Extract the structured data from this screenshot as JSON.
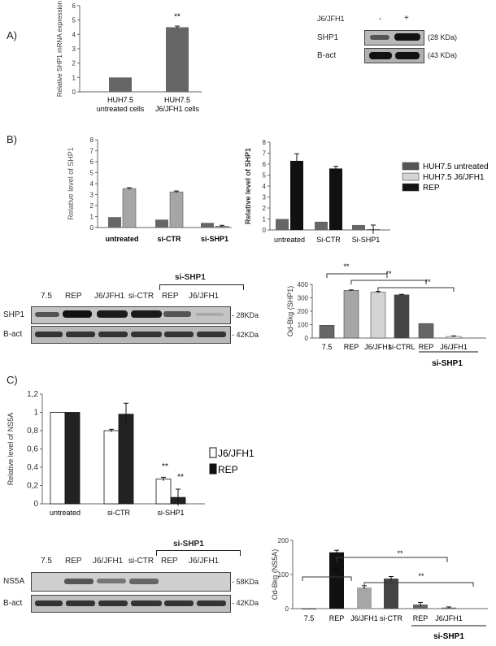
{
  "panel_labels": {
    "a": "A)",
    "b": "B)",
    "c": "C)"
  },
  "colors": {
    "dark_bar": "#666666",
    "black_bar": "#111111",
    "light_bar": "#d4d4d4",
    "mid_bar": "#a6a6a6",
    "white_bar": "#ffffff"
  },
  "chart_data": [
    {
      "type": "bar",
      "panel": "A-chart",
      "categories": [
        "HUH7.5 untreated cells",
        "HUH7.5 J6/JFH1 cells"
      ],
      "values": [
        1.0,
        4.5
      ],
      "errors": [
        0.0,
        0.08
      ],
      "significance": [
        "",
        "**"
      ],
      "ylabel": "Relative SHP1 mRNA expression",
      "ylim": [
        0,
        6
      ],
      "yticks": [
        0,
        1,
        2,
        3,
        4,
        5,
        6
      ]
    },
    {
      "type": "bar",
      "panel": "B-left",
      "categories": [
        "untreated",
        "si-CTR",
        "si-SHP1"
      ],
      "series": [
        {
          "values": [
            0.95,
            0.72,
            0.42
          ],
          "errors": [
            0,
            0,
            0
          ]
        },
        {
          "values": [
            3.55,
            3.25,
            0.12
          ],
          "errors": [
            0.08,
            0.08,
            0.08
          ]
        }
      ],
      "ylabel": "Relative level of SHP1",
      "ylim": [
        0,
        8
      ],
      "yticks": [
        0,
        1,
        2,
        3,
        4,
        5,
        6,
        7,
        8
      ]
    },
    {
      "type": "bar",
      "panel": "B-right",
      "categories": [
        "untreated",
        "Si-CTR",
        "Si-SHP1"
      ],
      "series": [
        {
          "name": "HUH7.5 untreated",
          "values": [
            1.0,
            0.75,
            0.45
          ],
          "errors": [
            0,
            0,
            0
          ]
        },
        {
          "name": "HUH7.5 J6/JFH1",
          "values": [
            null,
            null,
            null
          ]
        },
        {
          "name": "REP",
          "values": [
            6.3,
            5.6,
            0.05
          ],
          "errors": [
            0.65,
            0.2,
            0.4
          ]
        }
      ],
      "ylabel": "Relative level of SHP1",
      "ylim": [
        0,
        8
      ],
      "yticks": [
        0,
        1,
        2,
        3,
        4,
        5,
        6,
        7,
        8
      ],
      "legend": "right"
    },
    {
      "type": "bar",
      "panel": "B-densitometry",
      "categories": [
        "7.5",
        "REP",
        "J6/JFH1",
        "si-CTRL",
        "REP",
        "J6/JFH1"
      ],
      "values": [
        95,
        355,
        342,
        322,
        108,
        12
      ],
      "errors": [
        0,
        4,
        6,
        4,
        0,
        4
      ],
      "group_label": "si-SHP1",
      "significance": [
        "**",
        "**",
        "**"
      ],
      "ylabel": "Od-Bkg (SHP1)",
      "ylim": [
        0,
        400
      ],
      "yticks": [
        0,
        100,
        200,
        300,
        400
      ]
    },
    {
      "type": "bar",
      "panel": "C-chart",
      "categories": [
        "untreated",
        "si-CTR",
        "si-SHP1"
      ],
      "series": [
        {
          "name": "J6/JFH1",
          "values": [
            1.0,
            0.8,
            0.27
          ],
          "errors": [
            0,
            0.015,
            0.02
          ]
        },
        {
          "name": "REP",
          "values": [
            1.0,
            0.98,
            0.07
          ],
          "errors": [
            0,
            0.12,
            0.09
          ]
        }
      ],
      "significance": [
        "**",
        "**"
      ],
      "ylabel": "Relative level of NS5A",
      "ylim": [
        0,
        1.2
      ],
      "yticks": [
        "0",
        "0,2",
        "0,4",
        "0,6",
        "0,8",
        "1",
        "1,2"
      ],
      "legend": "right"
    },
    {
      "type": "bar",
      "panel": "C-densitometry",
      "categories": [
        "7.5",
        "REP",
        "J6/JFH1",
        "si-CTR",
        "REP",
        "J6/JFH1"
      ],
      "values": [
        0,
        165,
        62,
        88,
        12,
        3
      ],
      "errors": [
        0,
        6,
        5,
        6,
        6,
        2
      ],
      "group_label": "si-SHP1",
      "significance": [
        "**",
        "**",
        "**"
      ],
      "ylabel": "Od-Bkg (NS5A)",
      "ylim": [
        0,
        200
      ],
      "yticks": [
        0,
        100,
        200
      ]
    }
  ],
  "blot_a": {
    "header": "J6/JFH1",
    "lanes": [
      "-",
      "+"
    ],
    "rows": [
      {
        "label": "SHP1",
        "size": "(28 KDa)"
      },
      {
        "label": "B-act",
        "size": "(43 KDa)"
      }
    ]
  },
  "blot_b": {
    "lanes": [
      "7.5",
      "REP",
      "J6/JFH1",
      "si-CTR",
      "REP",
      "J6/JFH1"
    ],
    "group": "si-SHP1",
    "rows": [
      {
        "label": "SHP1",
        "size": "- 28KDa"
      },
      {
        "label": "B-act",
        "size": "- 42KDa"
      }
    ]
  },
  "blot_c": {
    "lanes": [
      "7.5",
      "REP",
      "J6/JFH1",
      "si-CTR",
      "REP",
      "J6/JFH1"
    ],
    "group": "si-SHP1",
    "rows": [
      {
        "label": "NS5A",
        "size": "- 58KDa"
      },
      {
        "label": "B-act",
        "size": "- 42KDa"
      }
    ]
  }
}
